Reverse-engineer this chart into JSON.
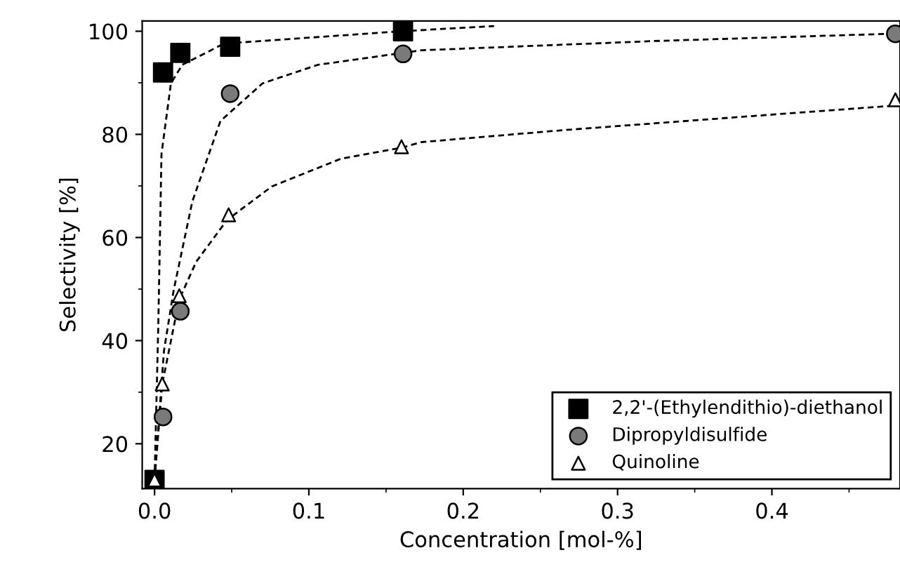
{
  "chart_data": {
    "type": "scatter",
    "xlabel": "Concentration [mol-%]",
    "ylabel": "Selectivity [%]",
    "xlim": [
      -0.008,
      0.483
    ],
    "ylim": [
      11.3,
      102
    ],
    "xticks": [
      {
        "value": 0,
        "label": "0.0"
      },
      0.1,
      0.2,
      0.3,
      0.4
    ],
    "yticks": [
      20,
      40,
      60,
      80,
      100
    ],
    "grid": false,
    "legend": "bottom right",
    "series": [
      {
        "name": "2,2'-(Ethylendithio)-diethanol",
        "color": "#000000",
        "marker": "square",
        "x": [
          0,
          0.0055,
          0.0167,
          0.049,
          0.161
        ],
        "values": [
          13,
          92,
          95.8,
          97,
          100
        ]
      },
      {
        "name": "Dipropyldisulfide",
        "color": "#7a7a7a",
        "marker": "circle",
        "x": [
          0.0055,
          0.0167,
          0.049,
          0.161,
          0.48
        ],
        "values": [
          25.2,
          45.7,
          87.9,
          95.6,
          99.5
        ]
      },
      {
        "name": "Quinoline",
        "color": "#ffffff",
        "marker": "triangle",
        "x": [
          0,
          0.005,
          0.016,
          0.048,
          0.16,
          0.48
        ],
        "values": [
          13,
          31.6,
          48.7,
          64.4,
          77.6,
          86.7
        ]
      },
      {
        "type": "line",
        "color": "#000000",
        "line_style": "dashed",
        "marker": "none",
        "x": [
          0,
          0.0024,
          0.0045,
          0.0106,
          0.018,
          0.045,
          0.16,
          0.22
        ],
        "values": [
          13,
          42.6,
          76.2,
          89.9,
          93.5,
          97.6,
          100,
          101
        ]
      },
      {
        "type": "line",
        "color": "#000000",
        "line_style": "dashed",
        "marker": "none",
        "x": [
          0,
          0.0017,
          0.0061,
          0.0124,
          0.0245,
          0.0427,
          0.07,
          0.106,
          0.161,
          0.173,
          0.324,
          0.476
        ],
        "values": [
          13,
          20,
          38,
          49.8,
          67,
          82.6,
          89.9,
          93.5,
          95.8,
          96.3,
          98.1,
          99.5
        ]
      },
      {
        "type": "line",
        "color": "#000000",
        "line_style": "dashed",
        "marker": "none",
        "x": [
          0,
          0.005,
          0.016,
          0.027,
          0.047,
          0.076,
          0.121,
          0.16,
          0.173,
          0.264,
          0.385,
          0.476
        ],
        "values": [
          13,
          31.6,
          48,
          55.3,
          63.4,
          69.9,
          75.3,
          77.4,
          78.5,
          80.8,
          83.5,
          85.5
        ]
      }
    ]
  }
}
